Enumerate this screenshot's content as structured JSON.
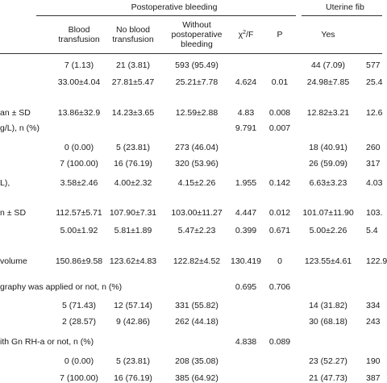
{
  "header": {
    "group1": "Postoperative bleeding",
    "group2": "Uterine fib",
    "col_blood": "Blood transfusion",
    "col_blood_line1": "Blood",
    "col_blood_line2": "transfusion",
    "col_noblood_line1": "No blood",
    "col_noblood_line2": "transfusion",
    "col_without_line1": "Without",
    "col_without_line2": "postoperative",
    "col_without_line3": "bleeding",
    "col_chi_base": "χ",
    "col_chi_sup": "2",
    "col_chi_rest": "/F",
    "col_p": "P",
    "col_yes": "Yes"
  },
  "rows": [
    {
      "label": "",
      "c1": "7 (1.13)",
      "c2": "21 (3.81)",
      "c3": "593 (95.49)",
      "chi": "",
      "p": "",
      "yes": "44 (7.09)",
      "last": "577"
    },
    {
      "label": "",
      "c1": "33.00±4.04",
      "c2": "27.81±5.47",
      "c3": "25.21±7.78",
      "chi": "4.624",
      "p": "0.01",
      "yes": "24.98±7.85",
      "last": "25.4"
    },
    {
      "label": "an ± SD",
      "c1": "13.86±32.9",
      "c2": "14.23±3.65",
      "c3": "12.59±2.88",
      "chi": "4.83",
      "p": "0.008",
      "yes": "12.82±3.21",
      "last": "12.6"
    },
    {
      "label": "g/L), n (%)",
      "c1": "",
      "c2": "",
      "c3": "",
      "chi": "9.791",
      "p": "0.007",
      "yes": "",
      "last": ""
    },
    {
      "label": "",
      "c1": "0 (0.00)",
      "c2": "5 (23.81)",
      "c3": "273 (46.04)",
      "chi": "",
      "p": "",
      "yes": "18 (40.91)",
      "last": "260"
    },
    {
      "label": "",
      "c1": "7 (100.00)",
      "c2": "16 (76.19)",
      "c3": "320 (53.96)",
      "chi": "",
      "p": "",
      "yes": "26 (59.09)",
      "last": "317"
    },
    {
      "label": "L),",
      "c1": "3.58±2.46",
      "c2": "4.00±2.32",
      "c3": "4.15±2.26",
      "chi": "1.955",
      "p": "0.142",
      "yes": "6.63±3.23",
      "last": "4.03"
    },
    {
      "label": "n ± SD",
      "c1": "112.57±5.71",
      "c2": "107.90±7.31",
      "c3": "103.00±11.27",
      "chi": "4.447",
      "p": "0.012",
      "yes": "101.07±11.90",
      "last": "103."
    },
    {
      "label": "",
      "c1": "5.00±1.92",
      "c2": "5.81±1.89",
      "c3": "5.47±2.23",
      "chi": "0.399",
      "p": "0.671",
      "yes": "5.00±2.26",
      "last": "5.4"
    },
    {
      "label": "volume",
      "c1": "150.86±9.58",
      "c2": "123.62±4.83",
      "c3": "122.82±4.52",
      "chi": "130.419",
      "p": "0",
      "yes": "123.55±4.61",
      "last": "122.9"
    },
    {
      "label": "graphy was applied or not, n (%)",
      "c1": "",
      "c2": "",
      "c3": "",
      "chi": "0.695",
      "p": "0.706",
      "yes": "",
      "last": ""
    },
    {
      "label": "",
      "c1": "5 (71.43)",
      "c2": "12 (57.14)",
      "c3": "331 (55.82)",
      "chi": "",
      "p": "",
      "yes": "14 (31.82)",
      "last": "334"
    },
    {
      "label": "",
      "c1": "2 (28.57)",
      "c2": "9 (42.86)",
      "c3": "262 (44.18)",
      "chi": "",
      "p": "",
      "yes": "30 (68.18)",
      "last": "243"
    },
    {
      "label": "ith Gn RH-a or not, n (%)",
      "c1": "",
      "c2": "",
      "c3": "",
      "chi": "4.838",
      "p": "0.089",
      "yes": "",
      "last": ""
    },
    {
      "label": "",
      "c1": "0 (0.00)",
      "c2": "5 (23.81)",
      "c3": "208 (35.08)",
      "chi": "",
      "p": "",
      "yes": "23 (52.27)",
      "last": "190"
    },
    {
      "label": "",
      "c1": "7 (100.00)",
      "c2": "16 (76.19)",
      "c3": "385 (64.92)",
      "chi": "",
      "p": "",
      "yes": "21 (47.73)",
      "last": "387"
    }
  ]
}
